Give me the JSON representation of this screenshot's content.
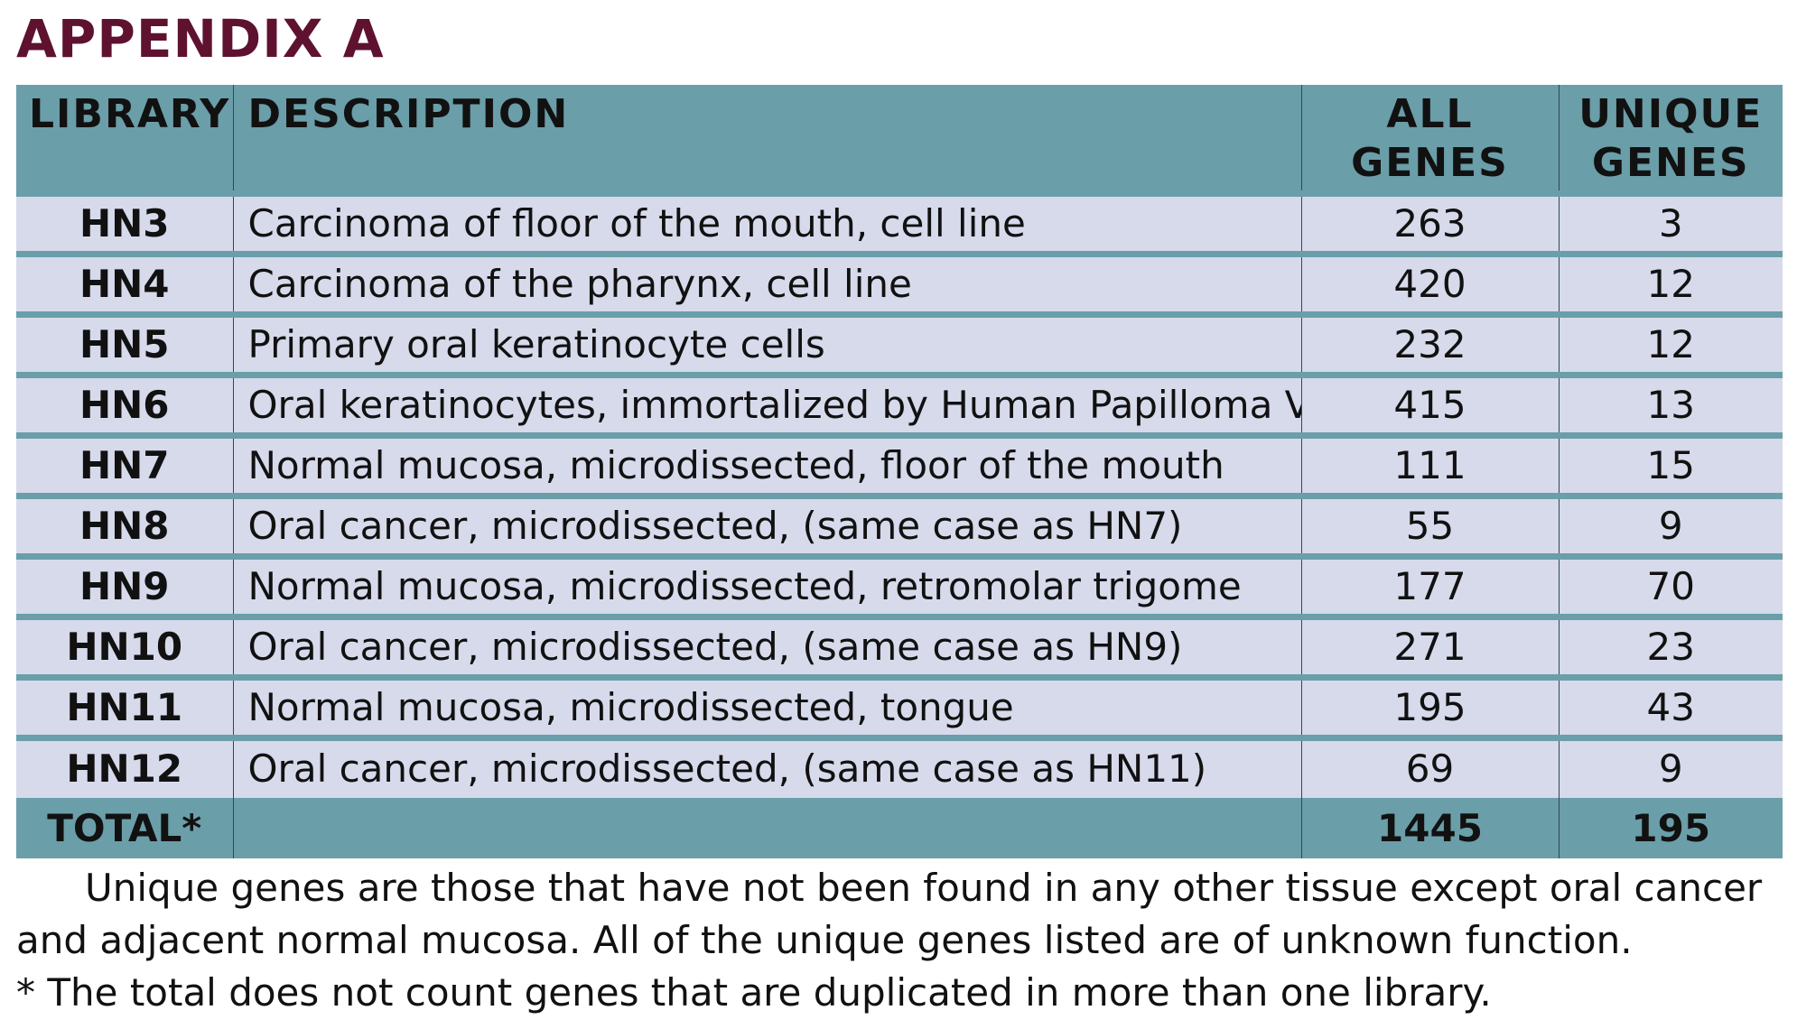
{
  "title": "APPENDIX A",
  "table": {
    "headers": {
      "library": "LIBRARY",
      "description": "DESCRIPTION",
      "all_genes": "ALL GENES",
      "unique_genes_line1": "UNIQUE",
      "unique_genes_line2": "GENES"
    },
    "rows": [
      {
        "library": "HN3",
        "description": "Carcinoma of floor of the mouth, cell line",
        "all_genes": "263",
        "unique_genes": "3"
      },
      {
        "library": "HN4",
        "description": "Carcinoma of the pharynx, cell line",
        "all_genes": "420",
        "unique_genes": "12"
      },
      {
        "library": "HN5",
        "description": "Primary oral keratinocyte cells",
        "all_genes": "232",
        "unique_genes": "12"
      },
      {
        "library": "HN6",
        "description": "Oral keratinocytes, immortalized by Human Papilloma Virus",
        "all_genes": "415",
        "unique_genes": "13"
      },
      {
        "library": "HN7",
        "description": "Normal mucosa, microdissected, floor of the mouth",
        "all_genes": "111",
        "unique_genes": "15"
      },
      {
        "library": "HN8",
        "description": "Oral cancer, microdissected, (same case as HN7)",
        "all_genes": "55",
        "unique_genes": "9"
      },
      {
        "library": "HN9",
        "description": "Normal mucosa, microdissected, retromolar trigome",
        "all_genes": "177",
        "unique_genes": "70"
      },
      {
        "library": "HN10",
        "description": "Oral cancer, microdissected, (same case as HN9)",
        "all_genes": "271",
        "unique_genes": "23"
      },
      {
        "library": "HN11",
        "description": "Normal mucosa, microdissected, tongue",
        "all_genes": "195",
        "unique_genes": "43"
      },
      {
        "library": "HN12",
        "description": "Oral cancer, microdissected, (same case as HN11)",
        "all_genes": "69",
        "unique_genes": "9"
      }
    ],
    "total": {
      "label": "TOTAL*",
      "description": "",
      "all_genes": "1445",
      "unique_genes": "195"
    }
  },
  "notes": {
    "unique_definition": "Unique genes are those that have not been found in any other tissue except oral cancer and adjacent normal mucosa.  All of the unique genes listed are of unknown function.",
    "total_footnote": "* The total does not count genes that are duplicated in more than one library."
  },
  "colors": {
    "title": "#5e1230",
    "header_band": "#6a9ea9",
    "row_background": "#d6daeb"
  }
}
